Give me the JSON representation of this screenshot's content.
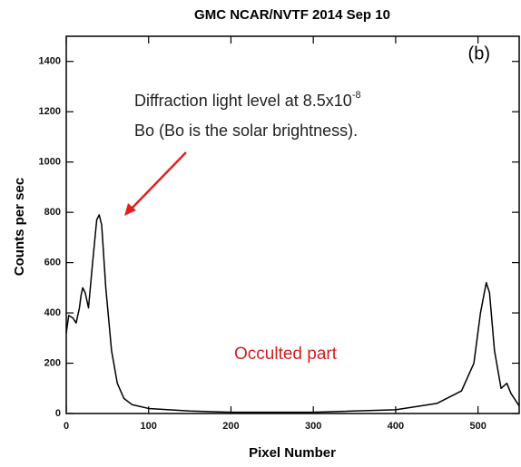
{
  "chart_data": {
    "type": "line",
    "title": "GMC NCAR/NVTF 2014 Sep 10",
    "x_label": "Pixel Number",
    "y_label": "Counts per sec",
    "panel_label": "(b)",
    "annotation": {
      "line1": "Diffraction light level at 8.5x10",
      "superscript": "-8",
      "line2": "Bo (Bo is the solar brightness)."
    },
    "region_label": "Occulted part",
    "xlim": [
      0,
      550
    ],
    "ylim": [
      0,
      1500
    ],
    "xticks": [
      0,
      100,
      200,
      300,
      400,
      500
    ],
    "yticks": [
      0,
      200,
      400,
      600,
      800,
      1000,
      1200,
      1400
    ],
    "series": [
      {
        "color": "#000000",
        "x": [
          0,
          3,
          8,
          12,
          16,
          18,
          20,
          23,
          27,
          32,
          37,
          40,
          43,
          48,
          55,
          62,
          70,
          80,
          100,
          150,
          200,
          300,
          400,
          450,
          480,
          495,
          503,
          510,
          514,
          520,
          528,
          535,
          540,
          550
        ],
        "values": [
          320,
          390,
          380,
          360,
          420,
          470,
          500,
          480,
          420,
          600,
          770,
          790,
          750,
          500,
          250,
          120,
          60,
          35,
          20,
          10,
          5,
          5,
          15,
          40,
          90,
          200,
          400,
          520,
          480,
          250,
          100,
          120,
          80,
          30
        ]
      }
    ]
  }
}
